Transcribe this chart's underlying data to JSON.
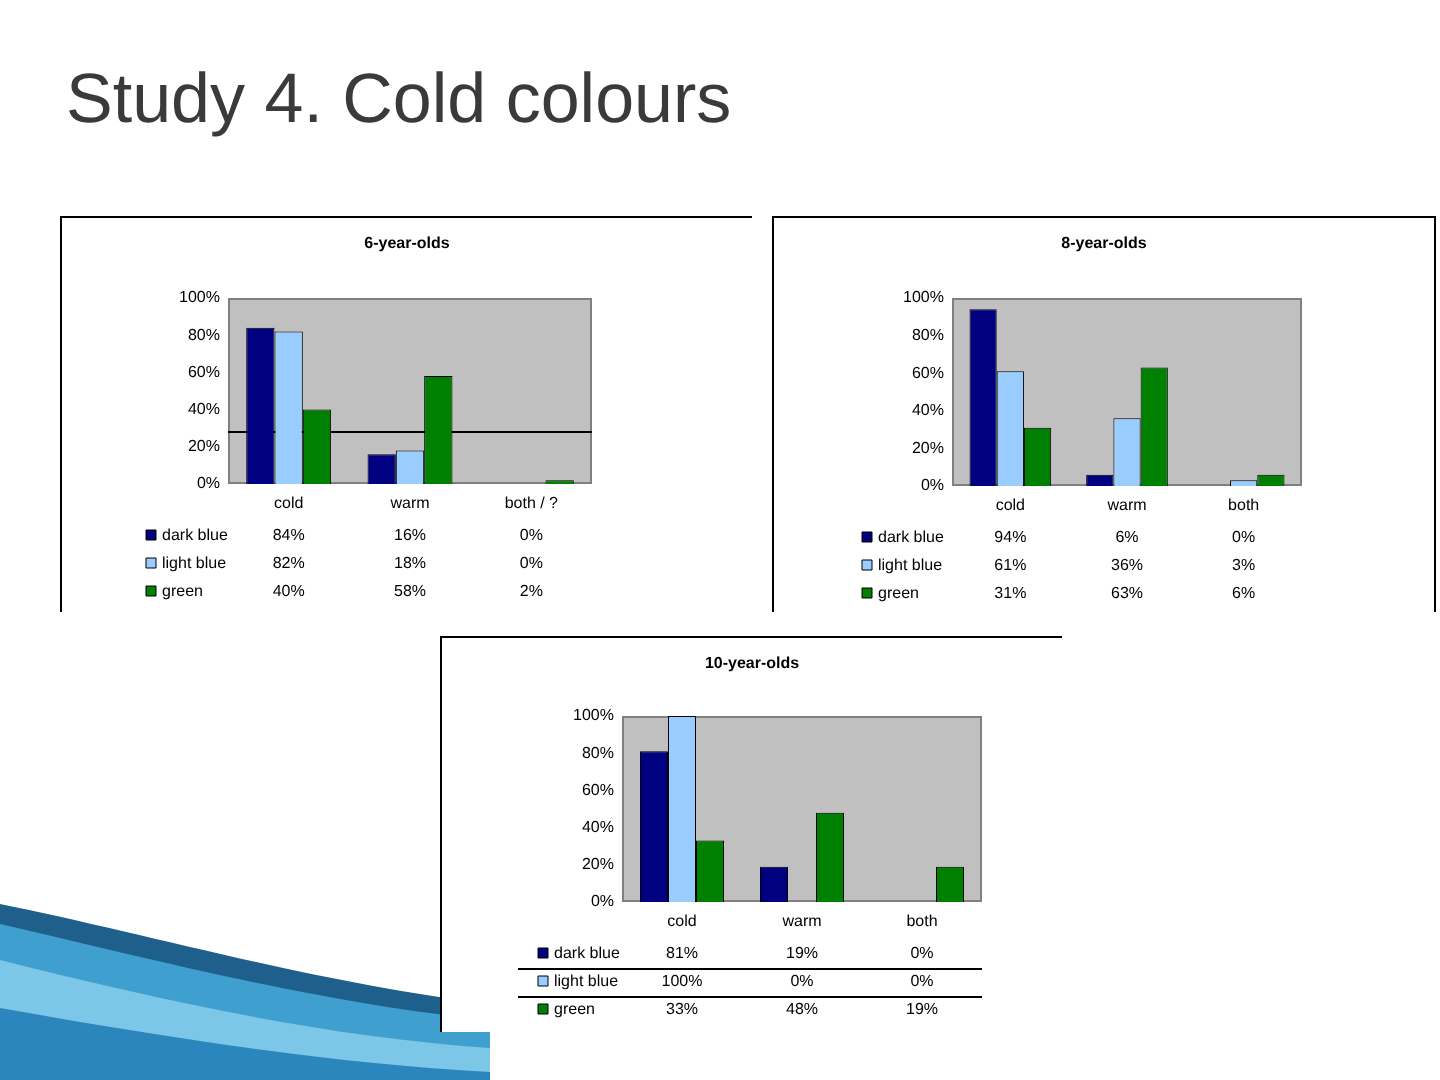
{
  "chart_data": [
    {
      "type": "other",
      "title": "Study 4. Cold colours"
    },
    {
      "type": "bar",
      "title": "6-year-olds",
      "categories": [
        "cold",
        "warm",
        "both / ?"
      ],
      "series": [
        {
          "name": "dark blue",
          "color": "#000080",
          "values": [
            84,
            16,
            0
          ],
          "value_labels": [
            "84%",
            "16%",
            "0%"
          ]
        },
        {
          "name": "light blue",
          "color": "#99ccff",
          "values": [
            82,
            18,
            0
          ],
          "value_labels": [
            "82%",
            "18%",
            "0%"
          ]
        },
        {
          "name": "green",
          "color": "#008000",
          "values": [
            40,
            58,
            2
          ],
          "value_labels": [
            "40%",
            "58%",
            "2%"
          ]
        }
      ],
      "ylim": [
        0,
        100
      ],
      "yticks": [
        {
          "value": 0,
          "label": "0%"
        },
        {
          "value": 20,
          "label": "20%"
        },
        {
          "value": 40,
          "label": "40%"
        },
        {
          "value": 60,
          "label": "60%"
        },
        {
          "value": 80,
          "label": "80%"
        },
        {
          "value": 100,
          "label": "100%"
        }
      ],
      "legend": "bottom",
      "ref_lines": [
        {
          "axis": "y",
          "value": 28,
          "color": "#000000"
        }
      ]
    },
    {
      "type": "bar",
      "title": "8-year-olds",
      "categories": [
        "cold",
        "warm",
        "both"
      ],
      "series": [
        {
          "name": "dark blue",
          "color": "#000080",
          "values": [
            94,
            6,
            0
          ],
          "value_labels": [
            "94%",
            "6%",
            "0%"
          ]
        },
        {
          "name": "light blue",
          "color": "#99ccff",
          "values": [
            61,
            36,
            3
          ],
          "value_labels": [
            "61%",
            "36%",
            "3%"
          ]
        },
        {
          "name": "green",
          "color": "#008000",
          "values": [
            31,
            63,
            6
          ],
          "value_labels": [
            "31%",
            "63%",
            "6%"
          ]
        }
      ],
      "ylim": [
        0,
        100
      ],
      "yticks": [
        {
          "value": 0,
          "label": "0%"
        },
        {
          "value": 20,
          "label": "20%"
        },
        {
          "value": 40,
          "label": "40%"
        },
        {
          "value": 60,
          "label": "60%"
        },
        {
          "value": 80,
          "label": "80%"
        },
        {
          "value": 100,
          "label": "100%"
        }
      ],
      "legend": "bottom"
    },
    {
      "type": "bar",
      "title": "10-year-olds",
      "categories": [
        "cold",
        "warm",
        "both"
      ],
      "series": [
        {
          "name": "dark blue",
          "color": "#000080",
          "values": [
            81,
            19,
            0
          ],
          "value_labels": [
            "81%",
            "19%",
            "0%"
          ]
        },
        {
          "name": "light blue",
          "color": "#99ccff",
          "values": [
            100,
            0,
            0
          ],
          "value_labels": [
            "100%",
            "0%",
            "0%"
          ]
        },
        {
          "name": "green",
          "color": "#008000",
          "values": [
            33,
            48,
            19
          ],
          "value_labels": [
            "33%",
            "48%",
            "19%"
          ]
        }
      ],
      "ylim": [
        0,
        100
      ],
      "yticks": [
        {
          "value": 0,
          "label": "0%"
        },
        {
          "value": 20,
          "label": "20%"
        },
        {
          "value": 40,
          "label": "40%"
        },
        {
          "value": 60,
          "label": "60%"
        },
        {
          "value": 80,
          "label": "80%"
        },
        {
          "value": 100,
          "label": "100%"
        }
      ],
      "legend": "bottom"
    }
  ]
}
